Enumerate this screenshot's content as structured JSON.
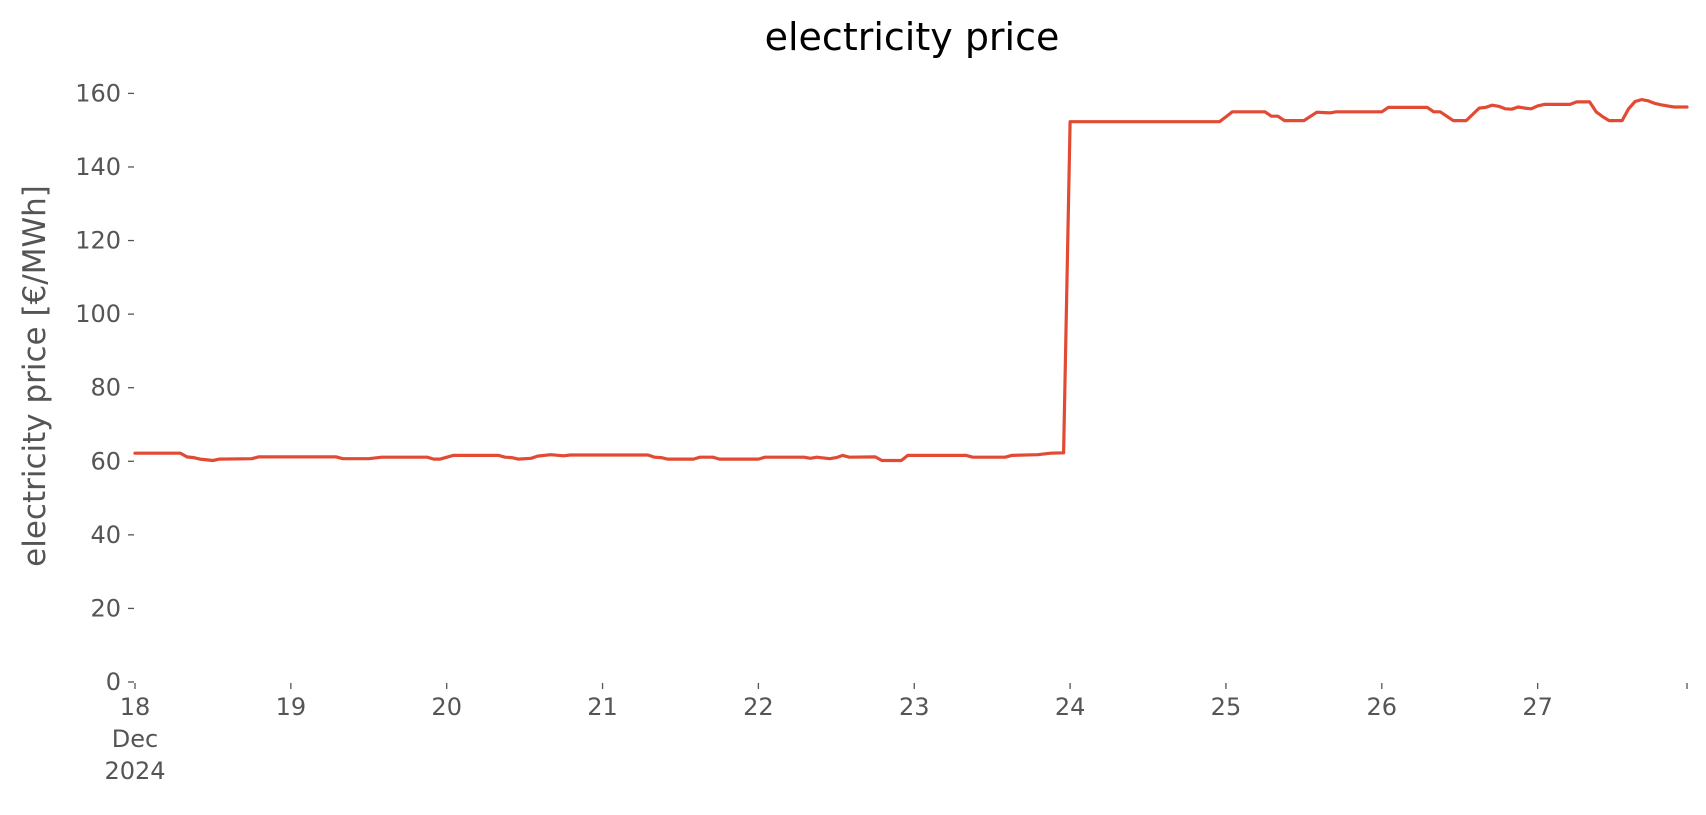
{
  "colors": {
    "series": "#E24A33",
    "text": "#555555",
    "title": "#000000"
  },
  "chart_data": {
    "type": "line",
    "title": "electricity price",
    "xlabel": "",
    "ylabel": "electricity price [€/MWh]",
    "ylim": [
      0,
      165
    ],
    "xlim": [
      "2024-12-18 00:00",
      "2024-12-27 23:00"
    ],
    "grid": false,
    "legend": "none",
    "y_ticks": [
      0,
      20,
      40,
      60,
      80,
      100,
      120,
      140,
      160
    ],
    "x_ticks": [
      {
        "date": "2024-12-18",
        "lines": [
          "18",
          "Dec",
          "2024"
        ]
      },
      {
        "date": "2024-12-19",
        "lines": [
          "19"
        ]
      },
      {
        "date": "2024-12-20",
        "lines": [
          "20"
        ]
      },
      {
        "date": "2024-12-21",
        "lines": [
          "21"
        ]
      },
      {
        "date": "2024-12-22",
        "lines": [
          "22"
        ]
      },
      {
        "date": "2024-12-23",
        "lines": [
          "23"
        ]
      },
      {
        "date": "2024-12-24",
        "lines": [
          "24"
        ]
      },
      {
        "date": "2024-12-25",
        "lines": [
          "25"
        ]
      },
      {
        "date": "2024-12-26",
        "lines": [
          "26"
        ]
      },
      {
        "date": "2024-12-27",
        "lines": [
          "27"
        ]
      }
    ],
    "series": [
      {
        "points": [
          [
            "2024-12-18 00:00",
            62.2
          ],
          [
            "2024-12-18 07:00",
            62.2
          ],
          [
            "2024-12-18 08:00",
            61.2
          ],
          [
            "2024-12-18 09:00",
            61.0
          ],
          [
            "2024-12-18 10:00",
            60.6
          ],
          [
            "2024-12-18 12:00",
            60.2
          ],
          [
            "2024-12-18 13:00",
            60.6
          ],
          [
            "2024-12-18 18:00",
            60.7
          ],
          [
            "2024-12-18 19:00",
            61.2
          ],
          [
            "2024-12-19 07:00",
            61.2
          ],
          [
            "2024-12-19 08:00",
            60.7
          ],
          [
            "2024-12-19 12:00",
            60.7
          ],
          [
            "2024-12-19 14:00",
            61.1
          ],
          [
            "2024-12-19 21:00",
            61.1
          ],
          [
            "2024-12-19 22:00",
            60.6
          ],
          [
            "2024-12-19 23:00",
            60.6
          ],
          [
            "2024-12-20 01:00",
            61.6
          ],
          [
            "2024-12-20 08:00",
            61.6
          ],
          [
            "2024-12-20 09:00",
            61.1
          ],
          [
            "2024-12-20 10:00",
            61.0
          ],
          [
            "2024-12-20 11:00",
            60.6
          ],
          [
            "2024-12-20 13:00",
            60.8
          ],
          [
            "2024-12-20 14:00",
            61.4
          ],
          [
            "2024-12-20 16:00",
            61.8
          ],
          [
            "2024-12-20 18:00",
            61.5
          ],
          [
            "2024-12-20 19:00",
            61.7
          ],
          [
            "2024-12-21 07:00",
            61.7
          ],
          [
            "2024-12-21 08:00",
            61.1
          ],
          [
            "2024-12-21 09:00",
            61.0
          ],
          [
            "2024-12-21 10:00",
            60.6
          ],
          [
            "2024-12-21 14:00",
            60.6
          ],
          [
            "2024-12-21 15:00",
            61.1
          ],
          [
            "2024-12-21 17:00",
            61.1
          ],
          [
            "2024-12-21 18:00",
            60.6
          ],
          [
            "2024-12-22 00:00",
            60.6
          ],
          [
            "2024-12-22 01:00",
            61.1
          ],
          [
            "2024-12-22 07:00",
            61.1
          ],
          [
            "2024-12-22 08:00",
            60.8
          ],
          [
            "2024-12-22 09:00",
            61.1
          ],
          [
            "2024-12-22 11:00",
            60.7
          ],
          [
            "2024-12-22 12:00",
            61.0
          ],
          [
            "2024-12-22 13:00",
            61.6
          ],
          [
            "2024-12-22 14:00",
            61.1
          ],
          [
            "2024-12-22 18:00",
            61.2
          ],
          [
            "2024-12-22 19:00",
            60.2
          ],
          [
            "2024-12-22 22:00",
            60.2
          ],
          [
            "2024-12-22 23:00",
            61.6
          ],
          [
            "2024-12-23 08:00",
            61.6
          ],
          [
            "2024-12-23 09:00",
            61.1
          ],
          [
            "2024-12-23 14:00",
            61.1
          ],
          [
            "2024-12-23 15:00",
            61.6
          ],
          [
            "2024-12-23 19:00",
            61.8
          ],
          [
            "2024-12-23 21:00",
            62.2
          ],
          [
            "2024-12-23 23:00",
            62.3
          ],
          [
            "2024-12-24 00:00",
            152.3
          ],
          [
            "2024-12-24 23:00",
            152.3
          ],
          [
            "2024-12-25 00:00",
            153.6
          ],
          [
            "2024-12-25 01:00",
            155.0
          ],
          [
            "2024-12-25 04:00",
            155.0
          ],
          [
            "2024-12-25 06:00",
            155.0
          ],
          [
            "2024-12-25 07:00",
            153.8
          ],
          [
            "2024-12-25 08:00",
            153.8
          ],
          [
            "2024-12-25 09:00",
            152.6
          ],
          [
            "2024-12-25 12:00",
            152.6
          ],
          [
            "2024-12-25 14:00",
            154.9
          ],
          [
            "2024-12-25 16:00",
            154.7
          ],
          [
            "2024-12-25 17:00",
            155.0
          ],
          [
            "2024-12-26 00:00",
            155.0
          ],
          [
            "2024-12-26 01:00",
            156.2
          ],
          [
            "2024-12-26 07:00",
            156.2
          ],
          [
            "2024-12-26 08:00",
            155.0
          ],
          [
            "2024-12-26 09:00",
            155.0
          ],
          [
            "2024-12-26 11:00",
            152.6
          ],
          [
            "2024-12-26 13:00",
            152.6
          ],
          [
            "2024-12-26 15:00",
            156.0
          ],
          [
            "2024-12-26 16:00",
            156.2
          ],
          [
            "2024-12-26 17:00",
            156.8
          ],
          [
            "2024-12-26 18:00",
            156.5
          ],
          [
            "2024-12-26 19:00",
            155.8
          ],
          [
            "2024-12-26 20:00",
            155.7
          ],
          [
            "2024-12-26 21:00",
            156.3
          ],
          [
            "2024-12-26 22:00",
            156.0
          ],
          [
            "2024-12-26 23:00",
            155.8
          ],
          [
            "2024-12-27 00:00",
            156.6
          ],
          [
            "2024-12-27 01:00",
            157.0
          ],
          [
            "2024-12-27 05:00",
            157.0
          ],
          [
            "2024-12-27 06:00",
            157.7
          ],
          [
            "2024-12-27 08:00",
            157.7
          ],
          [
            "2024-12-27 09:00",
            155.0
          ],
          [
            "2024-12-27 10:00",
            153.7
          ],
          [
            "2024-12-27 11:00",
            152.6
          ],
          [
            "2024-12-27 13:00",
            152.6
          ],
          [
            "2024-12-27 14:00",
            155.8
          ],
          [
            "2024-12-27 15:00",
            157.8
          ],
          [
            "2024-12-27 16:00",
            158.3
          ],
          [
            "2024-12-27 17:00",
            158.0
          ],
          [
            "2024-12-27 18:00",
            157.3
          ],
          [
            "2024-12-27 19:00",
            156.9
          ],
          [
            "2024-12-27 20:00",
            156.6
          ],
          [
            "2024-12-27 21:00",
            156.3
          ],
          [
            "2024-12-27 23:00",
            156.3
          ]
        ]
      }
    ]
  }
}
